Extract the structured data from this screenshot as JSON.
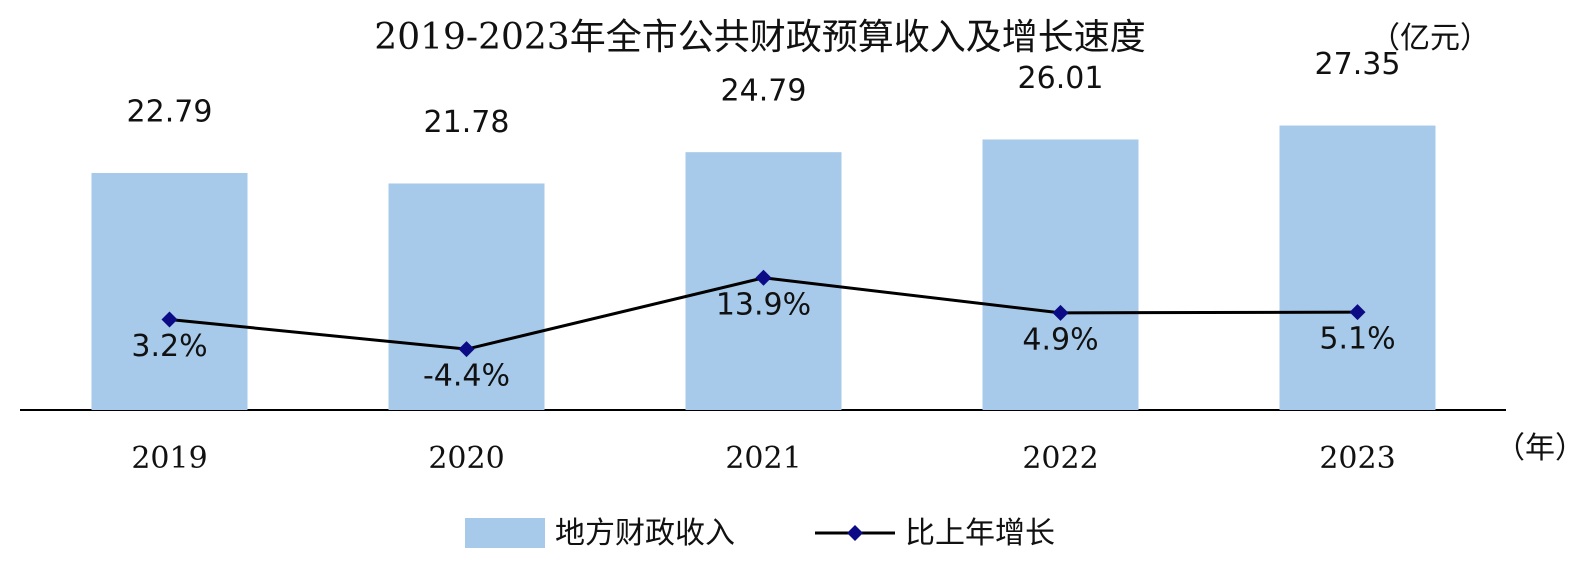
{
  "chart_data": {
    "type": "bar",
    "title": "2019-2023年全市公共财政预算收入及增长速度",
    "y_label": "（亿元）",
    "x_label": "（年）",
    "categories": [
      "2019",
      "2020",
      "2021",
      "2022",
      "2023"
    ],
    "ylim": [
      0,
      30
    ],
    "y2lim": [
      -20,
      60
    ],
    "series": [
      {
        "name": "地方财政收入",
        "type": "bar",
        "color": "#a7c9ea",
        "values": [
          22.79,
          21.78,
          24.79,
          26.01,
          27.35
        ]
      },
      {
        "name": "比上年增长",
        "type": "line",
        "axis": "y2",
        "color": "#000000",
        "marker_color": "#0b0b85",
        "values": [
          3.2,
          -4.4,
          13.9,
          4.9,
          5.1
        ],
        "value_labels": [
          "3.2%",
          "-4.4%",
          "13.9%",
          "4.9%",
          "5.1%"
        ]
      }
    ],
    "legend": "bottom"
  }
}
